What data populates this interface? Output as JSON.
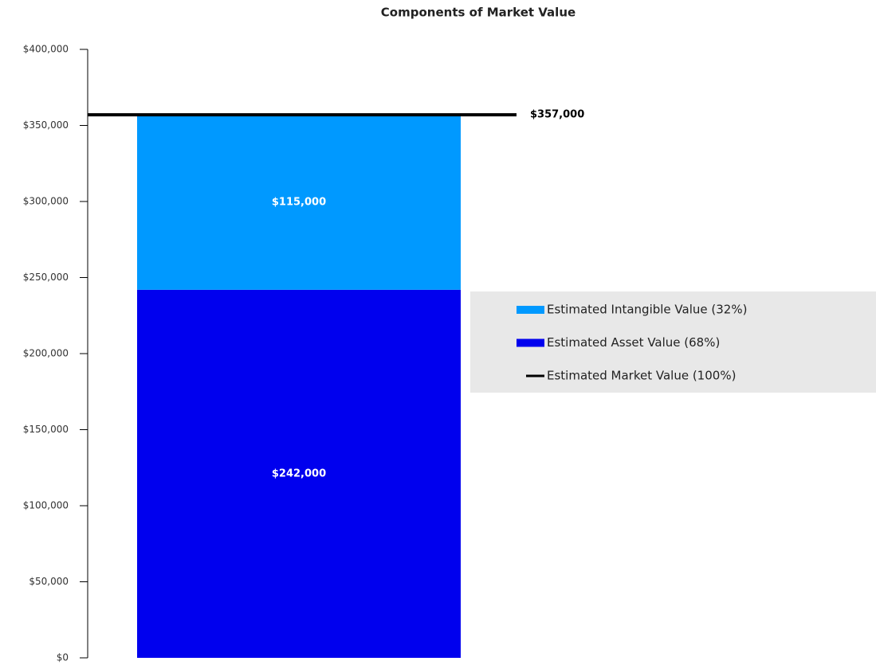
{
  "chart_data": {
    "type": "bar",
    "stacked": true,
    "title": "Components of Market Value",
    "categories": [
      null
    ],
    "series": [
      {
        "name": "Estimated Intangible Value (32%)",
        "color": "#0099ff",
        "values": [
          115000
        ],
        "value_labels": [
          "$115,000"
        ]
      },
      {
        "name": "Estimated Asset Value (68%)",
        "color": "#0000ee",
        "values": [
          242000
        ],
        "value_labels": [
          "$242,000"
        ]
      },
      {
        "name": "Estimated Market Value (100%)",
        "type": "line",
        "color": "#000000",
        "values": [
          357000
        ],
        "value_labels": [
          "$357,000"
        ]
      }
    ],
    "ylim": [
      0,
      400000
    ],
    "yticks": [
      {
        "value": 0,
        "label": "$0"
      },
      {
        "value": 50000,
        "label": "$50,000"
      },
      {
        "value": 100000,
        "label": "$100,000"
      },
      {
        "value": 150000,
        "label": "$150,000"
      },
      {
        "value": 200000,
        "label": "$200,000"
      },
      {
        "value": 250000,
        "label": "$250,000"
      },
      {
        "value": 300000,
        "label": "$300,000"
      },
      {
        "value": 350000,
        "label": "$350,000"
      },
      {
        "value": 400000,
        "label": "$400,000"
      }
    ],
    "grid": false,
    "legend": "right"
  }
}
